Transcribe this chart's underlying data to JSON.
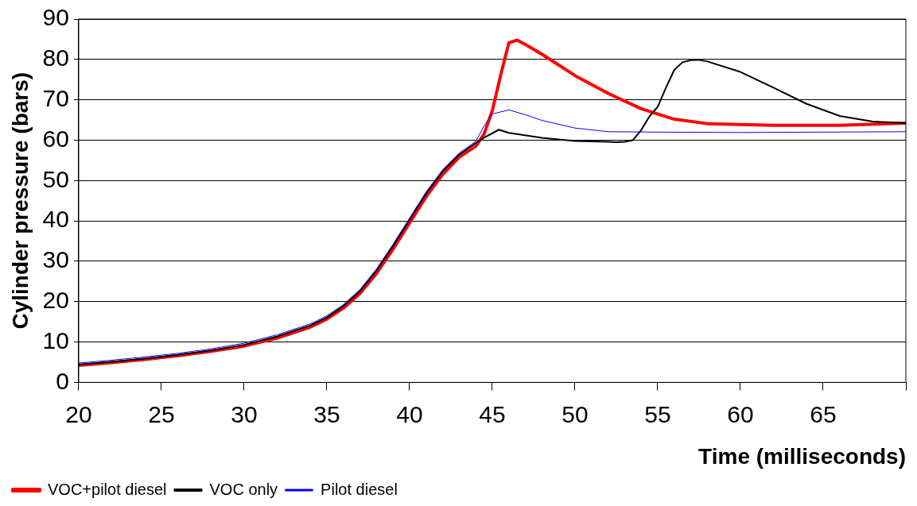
{
  "chart_data": {
    "type": "line",
    "xlabel": "Time (milliseconds)",
    "ylabel": "Cylinder pressure (bars)",
    "xlim": [
      20,
      70
    ],
    "xticks": [
      20,
      25,
      30,
      35,
      40,
      45,
      50,
      55,
      60,
      65,
      {
        "value": 70,
        "label": null
      }
    ],
    "ylim": [
      0,
      90
    ],
    "yticks": [
      0,
      10,
      20,
      30,
      40,
      50,
      60,
      70,
      80,
      90
    ],
    "grid": "y",
    "legend": "bottom left",
    "marker": "none",
    "line_style": "solid",
    "series": [
      {
        "name": "VOC+pilot diesel",
        "color": "#ff0000",
        "x": [
          20,
          22,
          24,
          26,
          28,
          30,
          32,
          34,
          35,
          36,
          37,
          38,
          39,
          40,
          41,
          42,
          43,
          44,
          44.5,
          45,
          45.5,
          46,
          46.5,
          47,
          48,
          50,
          52,
          54,
          56,
          58,
          62,
          66,
          70
        ],
        "values": [
          4.2,
          4.9,
          5.7,
          6.6,
          7.7,
          9.0,
          11.0,
          13.7,
          15.7,
          18.4,
          22,
          27,
          33,
          39.5,
          46,
          51.5,
          55.8,
          58.5,
          61.5,
          67.3,
          76,
          84.1,
          84.8,
          83.7,
          81.3,
          76,
          71.6,
          67.8,
          65.2,
          64.1,
          63.7,
          63.7,
          64.2
        ]
      },
      {
        "name": "VOC only",
        "color": "#000000",
        "x": [
          20,
          22,
          24,
          26,
          28,
          30,
          32,
          34,
          35,
          36,
          37,
          38,
          39,
          40,
          41,
          42,
          43,
          44,
          44.5,
          45.4,
          46,
          48,
          50,
          52,
          52.5,
          53,
          53.5,
          54,
          54.5,
          55,
          55.5,
          56,
          56.5,
          57,
          57.5,
          58,
          60,
          62,
          64,
          66,
          68,
          70
        ],
        "values": [
          4.4,
          5.1,
          5.9,
          6.8,
          7.9,
          9.3,
          11.4,
          14.1,
          16.1,
          18.9,
          22.6,
          27.7,
          33.8,
          40.3,
          46.8,
          52.3,
          56.4,
          59.3,
          60.6,
          62.6,
          61.8,
          60.6,
          59.8,
          59.6,
          59.5,
          59.6,
          60,
          62.5,
          65.9,
          68.3,
          73,
          77.4,
          79.3,
          79.8,
          79.9,
          79.5,
          76.9,
          73,
          69,
          66,
          64.6,
          64.2
        ]
      },
      {
        "name": "Pilot diesel",
        "color": "#0000ff",
        "x": [
          20,
          22,
          24,
          26,
          28,
          30,
          32,
          34,
          35,
          36,
          37,
          38,
          39,
          40,
          41,
          42,
          43,
          44,
          44.5,
          45,
          45.5,
          46,
          47,
          48,
          50,
          52,
          55,
          60,
          65,
          70
        ],
        "values": [
          4.8,
          5.5,
          6.3,
          7.2,
          8.3,
          9.7,
          11.8,
          14.5,
          16.5,
          19.3,
          23,
          28.1,
          34.2,
          40.7,
          47.2,
          52.7,
          56.8,
          59.7,
          63.5,
          66.5,
          67,
          67.5,
          66.3,
          64.9,
          63,
          62.1,
          62,
          61.9,
          62,
          62.1
        ]
      }
    ]
  }
}
